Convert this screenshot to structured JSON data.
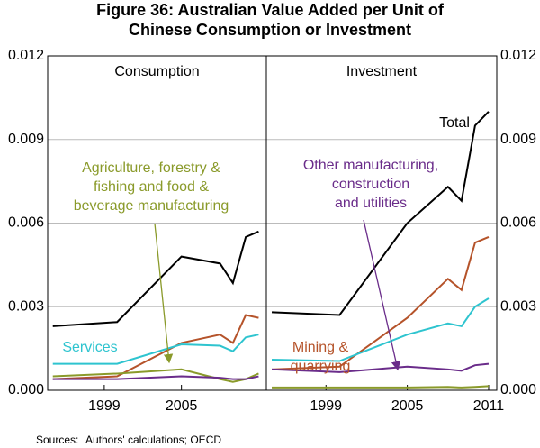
{
  "title": [
    "Figure 36: Australian Value Added per Unit of",
    "Chinese Consumption or Investment"
  ],
  "sources": {
    "label": "Sources:",
    "text": "Authors' calculations; OECD"
  },
  "chart_data": [
    {
      "type": "line",
      "subtitle": "Consumption",
      "x": [
        1995,
        2000,
        2005,
        2008,
        2009,
        2010,
        2011
      ],
      "xlim": [
        1994.6,
        2011.6
      ],
      "xticks": [
        1999,
        2005
      ],
      "ylim": [
        0,
        0.012
      ],
      "yticks": [
        {
          "value": 0,
          "label": "0.000"
        },
        0.003,
        0.006,
        0.009,
        0.012
      ],
      "grid": true,
      "series": [
        {
          "color": "#000000",
          "values": [
            0.0023,
            0.00245,
            0.0048,
            0.00455,
            0.00385,
            0.0055,
            0.0057
          ]
        },
        {
          "color": "#b5532a",
          "values": [
            0.0004,
            0.0005,
            0.0017,
            0.002,
            0.0017,
            0.0027,
            0.0026
          ]
        },
        {
          "color": "#2ec4cf",
          "values": [
            0.00095,
            0.00095,
            0.00165,
            0.0016,
            0.0014,
            0.0019,
            0.002
          ]
        },
        {
          "color": "#8a9a2a",
          "values": [
            0.0005,
            0.0006,
            0.00075,
            0.0004,
            0.0003,
            0.0004,
            0.0006
          ]
        },
        {
          "color": "#6a2c8a",
          "values": [
            0.0004,
            0.0004,
            0.0005,
            0.00045,
            0.0004,
            0.0004,
            0.0005
          ]
        }
      ],
      "annotations": [
        {
          "text": [
            "Agriculture, forestry &",
            "fishing and food &",
            "beverage manufacturing"
          ],
          "color": "#8a9a2a"
        },
        {
          "text": [
            "Services"
          ],
          "color": "#2ec4cf"
        }
      ]
    },
    {
      "type": "line",
      "subtitle": "Investment",
      "x": [
        1995,
        2000,
        2005,
        2008,
        2009,
        2010,
        2011
      ],
      "xlim": [
        1994.6,
        2011.6
      ],
      "xticks": [
        1999,
        2005,
        2011
      ],
      "ylim": [
        0,
        0.012
      ],
      "yticks": [
        {
          "value": 0,
          "label": "0.000"
        },
        0.003,
        0.006,
        0.009,
        0.012
      ],
      "grid": true,
      "series": [
        {
          "color": "#000000",
          "values": [
            0.0028,
            0.0027,
            0.006,
            0.0073,
            0.0068,
            0.0095,
            0.01
          ]
        },
        {
          "color": "#b5532a",
          "values": [
            0.00075,
            0.00085,
            0.0026,
            0.004,
            0.0036,
            0.0053,
            0.0055
          ]
        },
        {
          "color": "#2ec4cf",
          "values": [
            0.0011,
            0.00105,
            0.002,
            0.0024,
            0.0023,
            0.003,
            0.0033
          ]
        },
        {
          "color": "#8a9a2a",
          "values": [
            0.0001,
            0.0001,
            0.0001,
            0.00012,
            0.0001,
            0.00012,
            0.00015
          ]
        },
        {
          "color": "#6a2c8a",
          "values": [
            0.00075,
            0.00065,
            0.00085,
            0.00075,
            0.0007,
            0.0009,
            0.00095
          ]
        }
      ],
      "annotations": [
        {
          "text": [
            "Total"
          ],
          "color": "#000000"
        },
        {
          "text": [
            "Other manufacturing,",
            "construction",
            "and utilities"
          ],
          "color": "#6a2c8a"
        },
        {
          "text": [
            "Mining &",
            "quarrying"
          ],
          "color": "#b5532a"
        }
      ]
    }
  ]
}
